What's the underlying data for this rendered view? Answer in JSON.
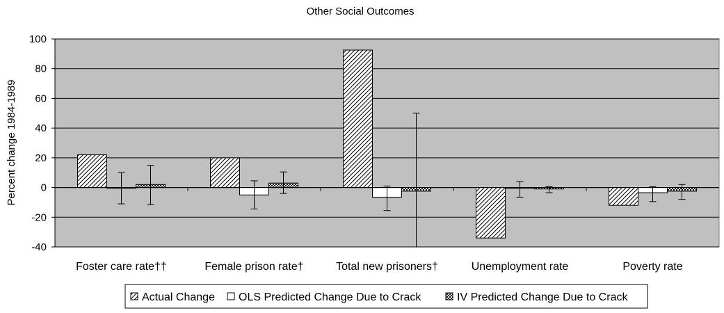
{
  "chart_data": {
    "type": "bar",
    "title": "Other Social Outcomes",
    "xlabel": "",
    "ylabel": "Percent change 1984-1989",
    "ylim": [
      -40,
      100
    ],
    "yticks": [
      -40,
      -20,
      0,
      20,
      40,
      60,
      80,
      100
    ],
    "grid": true,
    "legend_position": "bottom",
    "categories": [
      "Foster care rate††",
      "Female prison rate†",
      "Total new prisoners†",
      "Unemployment rate",
      "Poverty rate"
    ],
    "series": [
      {
        "name": "Actual Change",
        "pattern": "diagonal-hatch",
        "values": [
          22,
          20,
          92.5,
          -34,
          -12
        ],
        "error": null
      },
      {
        "name": "OLS Predicted Change Due to Crack",
        "pattern": "white",
        "values": [
          -0.5,
          -5,
          -6.5,
          -0.5,
          -3.5
        ],
        "error": [
          [
            -11,
            10
          ],
          [
            -14.5,
            4.5
          ],
          [
            -15.5,
            1
          ],
          [
            -6.5,
            4
          ],
          [
            -9.5,
            0.5
          ]
        ]
      },
      {
        "name": "IV Predicted Change Due to Crack",
        "pattern": "crosshatch",
        "values": [
          2,
          3,
          -2.5,
          -1,
          -2.5
        ],
        "error": [
          [
            -11.5,
            15
          ],
          [
            -4,
            10.5
          ],
          [
            -40,
            50
          ],
          [
            -3.5,
            0.5
          ],
          [
            -8,
            2
          ]
        ]
      }
    ],
    "colors": {
      "plot_background": "#c0c0c0",
      "gridline": "#000000",
      "bar_outline": "#000000"
    }
  }
}
